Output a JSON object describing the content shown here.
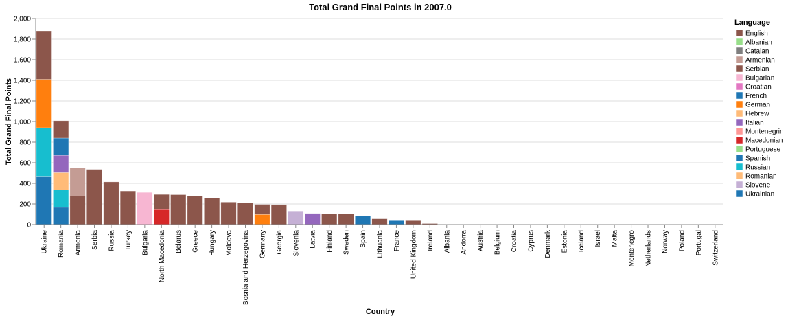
{
  "chart_data": {
    "type": "bar",
    "stacked": true,
    "title": "Total Grand Final Points in 2007.0",
    "xlabel": "Country",
    "ylabel": "Total Grand Final Points",
    "ylim": [
      0,
      2000
    ],
    "yticks": [
      0,
      200,
      400,
      600,
      800,
      1000,
      1200,
      1400,
      1600,
      1800,
      2000
    ],
    "ytick_labels": [
      "0",
      "200",
      "400",
      "600",
      "800",
      "1,000",
      "1,200",
      "1,400",
      "1,600",
      "1,800",
      "2,000"
    ],
    "grid": true,
    "legend": {
      "title": "Language",
      "placement": "right",
      "entries": [
        {
          "name": "English",
          "color": "#8c564b"
        },
        {
          "name": "Albanian",
          "color": "#98df8a"
        },
        {
          "name": "Catalan",
          "color": "#7f7f7f"
        },
        {
          "name": "Armenian",
          "color": "#c49c94"
        },
        {
          "name": "Serbian",
          "color": "#8c564b"
        },
        {
          "name": "Bulgarian",
          "color": "#f7b6d2"
        },
        {
          "name": "Croatian",
          "color": "#e377c2"
        },
        {
          "name": "French",
          "color": "#1f77b4"
        },
        {
          "name": "German",
          "color": "#ff7f0e"
        },
        {
          "name": "Hebrew",
          "color": "#ffbb78"
        },
        {
          "name": "Italian",
          "color": "#9467bd"
        },
        {
          "name": "Montenegrin",
          "color": "#ff9896"
        },
        {
          "name": "Macedonian",
          "color": "#d62728"
        },
        {
          "name": "Portuguese",
          "color": "#98df8a"
        },
        {
          "name": "Spanish",
          "color": "#1f77b4"
        },
        {
          "name": "Russian",
          "color": "#17becf"
        },
        {
          "name": "Romanian",
          "color": "#ffbb78"
        },
        {
          "name": "Slovene",
          "color": "#c5b0d5"
        },
        {
          "name": "Ukrainian",
          "color": "#1f77b4"
        }
      ]
    },
    "categories": [
      "Ukraine",
      "Romania",
      "Armenia",
      "Serbia",
      "Russia",
      "Turkey",
      "Bulgaria",
      "North Macedonia",
      "Belarus",
      "Greece",
      "Hungary",
      "Moldova",
      "Bosnia and Herzegovina",
      "Germany",
      "Georgia",
      "Slovenia",
      "Latvia",
      "Finland",
      "Sweden",
      "Spain",
      "Lithuania",
      "France",
      "United Kingdom",
      "Ireland",
      "Albania",
      "Andorra",
      "Austria",
      "Belgium",
      "Croatia",
      "Cyprus",
      "Denmark",
      "Estonia",
      "Iceland",
      "Israel",
      "Malta",
      "Montenegro",
      "Netherlands",
      "Norway",
      "Poland",
      "Portugal",
      "Switzerland"
    ],
    "bars": [
      {
        "country": "Ukraine",
        "segments": [
          {
            "language": "Ukrainian",
            "value": 470
          },
          {
            "language": "Russian",
            "value": 470
          },
          {
            "language": "German",
            "value": 470
          },
          {
            "language": "English",
            "value": 470
          }
        ]
      },
      {
        "country": "Romania",
        "segments": [
          {
            "language": "Spanish",
            "value": 168
          },
          {
            "language": "Russian",
            "value": 168
          },
          {
            "language": "Romanian",
            "value": 168
          },
          {
            "language": "Italian",
            "value": 168
          },
          {
            "language": "French",
            "value": 168
          },
          {
            "language": "English",
            "value": 168
          }
        ]
      },
      {
        "country": "Armenia",
        "segments": [
          {
            "language": "English",
            "value": 276
          },
          {
            "language": "Armenian",
            "value": 276
          }
        ]
      },
      {
        "country": "Serbia",
        "segments": [
          {
            "language": "Serbian",
            "value": 536
          }
        ]
      },
      {
        "country": "Russia",
        "segments": [
          {
            "language": "English",
            "value": 414
          }
        ]
      },
      {
        "country": "Turkey",
        "segments": [
          {
            "language": "English",
            "value": 326
          }
        ]
      },
      {
        "country": "Bulgaria",
        "segments": [
          {
            "language": "Bulgarian",
            "value": 312
          }
        ]
      },
      {
        "country": "North Macedonia",
        "segments": [
          {
            "language": "Macedonian",
            "value": 146
          },
          {
            "language": "English",
            "value": 146
          }
        ]
      },
      {
        "country": "Belarus",
        "segments": [
          {
            "language": "English",
            "value": 290
          }
        ]
      },
      {
        "country": "Greece",
        "segments": [
          {
            "language": "English",
            "value": 278
          }
        ]
      },
      {
        "country": "Hungary",
        "segments": [
          {
            "language": "English",
            "value": 256
          }
        ]
      },
      {
        "country": "Moldova",
        "segments": [
          {
            "language": "English",
            "value": 218
          }
        ]
      },
      {
        "country": "Bosnia and Herzegovina",
        "segments": [
          {
            "language": "Serbian",
            "value": 212
          }
        ]
      },
      {
        "country": "Germany",
        "segments": [
          {
            "language": "German",
            "value": 98
          },
          {
            "language": "English",
            "value": 98
          }
        ]
      },
      {
        "country": "Georgia",
        "segments": [
          {
            "language": "English",
            "value": 194
          }
        ]
      },
      {
        "country": "Slovenia",
        "segments": [
          {
            "language": "Slovene",
            "value": 132
          }
        ]
      },
      {
        "country": "Latvia",
        "segments": [
          {
            "language": "Italian",
            "value": 108
          }
        ]
      },
      {
        "country": "Finland",
        "segments": [
          {
            "language": "English",
            "value": 106
          }
        ]
      },
      {
        "country": "Sweden",
        "segments": [
          {
            "language": "English",
            "value": 102
          }
        ]
      },
      {
        "country": "Spain",
        "segments": [
          {
            "language": "Spanish",
            "value": 86
          }
        ]
      },
      {
        "country": "Lithuania",
        "segments": [
          {
            "language": "English",
            "value": 56
          }
        ]
      },
      {
        "country": "France",
        "segments": [
          {
            "language": "French",
            "value": 38
          }
        ]
      },
      {
        "country": "United Kingdom",
        "segments": [
          {
            "language": "English",
            "value": 38
          }
        ]
      },
      {
        "country": "Ireland",
        "segments": [
          {
            "language": "English",
            "value": 10
          }
        ]
      },
      {
        "country": "Albania",
        "segments": []
      },
      {
        "country": "Andorra",
        "segments": []
      },
      {
        "country": "Austria",
        "segments": []
      },
      {
        "country": "Belgium",
        "segments": []
      },
      {
        "country": "Croatia",
        "segments": []
      },
      {
        "country": "Cyprus",
        "segments": []
      },
      {
        "country": "Denmark",
        "segments": []
      },
      {
        "country": "Estonia",
        "segments": []
      },
      {
        "country": "Iceland",
        "segments": []
      },
      {
        "country": "Israel",
        "segments": []
      },
      {
        "country": "Malta",
        "segments": []
      },
      {
        "country": "Montenegro",
        "segments": []
      },
      {
        "country": "Netherlands",
        "segments": []
      },
      {
        "country": "Norway",
        "segments": []
      },
      {
        "country": "Poland",
        "segments": []
      },
      {
        "country": "Portugal",
        "segments": []
      },
      {
        "country": "Switzerland",
        "segments": []
      }
    ]
  }
}
